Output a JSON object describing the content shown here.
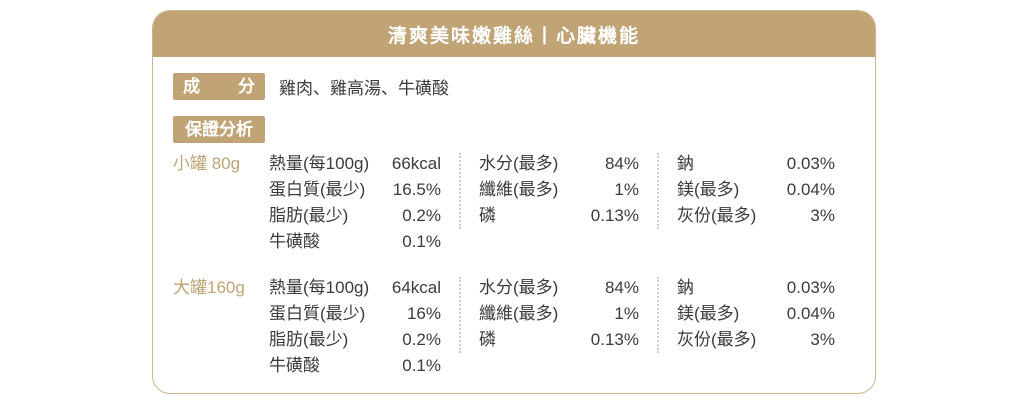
{
  "colors": {
    "accent": "#C0A476",
    "border": "#CDB68A",
    "text": "#3E3A39",
    "divider": "#CFCFCF",
    "header_text": "#FFFFFF"
  },
  "header": {
    "title": "清爽美味嫩雞絲丨心臟機能"
  },
  "ingredients": {
    "label": "成 分",
    "value": "雞肉、雞高湯、牛磺酸"
  },
  "analysis": {
    "label": "保證分析",
    "groups": [
      {
        "size_label": "小罐 80g",
        "columns": [
          {
            "rows": [
              {
                "name": "熱量(每100g)",
                "value": "66kcal"
              },
              {
                "name": "蛋白質(最少)",
                "value": "16.5%"
              },
              {
                "name": "脂肪(最少)",
                "value": "0.2%"
              },
              {
                "name": "牛磺酸",
                "value": "0.1%"
              }
            ]
          },
          {
            "rows": [
              {
                "name": "水分(最多)",
                "value": "84%"
              },
              {
                "name": "纖維(最多)",
                "value": "1%"
              },
              {
                "name": "磷",
                "value": "0.13%"
              }
            ]
          },
          {
            "rows": [
              {
                "name": "鈉",
                "value": "0.03%"
              },
              {
                "name": "鎂(最多)",
                "value": "0.04%"
              },
              {
                "name": "灰份(最多)",
                "value": "3%"
              }
            ]
          }
        ]
      },
      {
        "size_label": "大罐160g",
        "columns": [
          {
            "rows": [
              {
                "name": "熱量(每100g)",
                "value": "64kcal"
              },
              {
                "name": "蛋白質(最少)",
                "value": "16%"
              },
              {
                "name": "脂肪(最少)",
                "value": "0.2%"
              },
              {
                "name": "牛磺酸",
                "value": "0.1%"
              }
            ]
          },
          {
            "rows": [
              {
                "name": "水分(最多)",
                "value": "84%"
              },
              {
                "name": "纖維(最多)",
                "value": "1%"
              },
              {
                "name": "磷",
                "value": "0.13%"
              }
            ]
          },
          {
            "rows": [
              {
                "name": "鈉",
                "value": "0.03%"
              },
              {
                "name": "鎂(最多)",
                "value": "0.04%"
              },
              {
                "name": "灰份(最多)",
                "value": "3%"
              }
            ]
          }
        ]
      }
    ]
  }
}
